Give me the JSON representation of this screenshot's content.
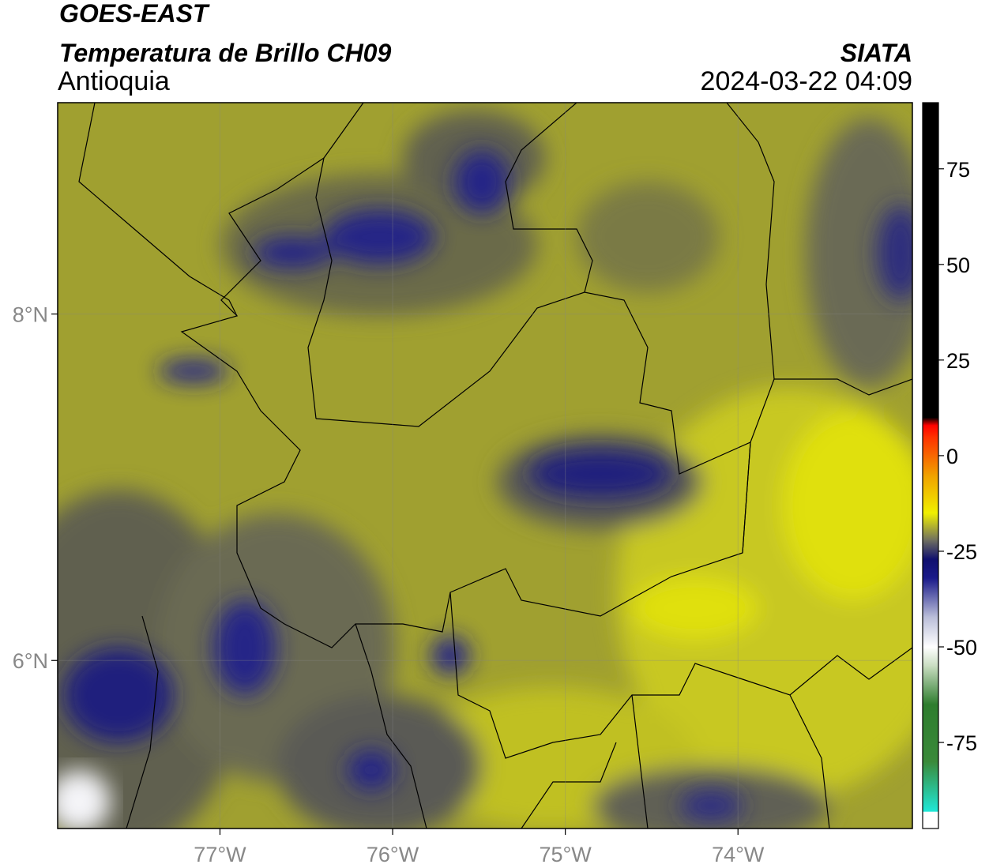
{
  "chart_data": {
    "type": "map",
    "title": "GOES-EAST",
    "subtitle": "Temperatura de Brillo CH09",
    "region": "Antioquia",
    "source": "SIATA",
    "timestamp": "2024-03-22 04:09",
    "xlim": [
      -77.94,
      -72.99
    ],
    "ylim": [
      5.03,
      9.22
    ],
    "xticks": [
      {
        "value": -77,
        "label": "77°W"
      },
      {
        "value": -76,
        "label": "76°W"
      },
      {
        "value": -75,
        "label": "75°W"
      },
      {
        "value": -74,
        "label": "74°W"
      }
    ],
    "yticks": [
      {
        "value": 8,
        "label": "8°N"
      },
      {
        "value": 6,
        "label": "6°N"
      }
    ],
    "grid": true,
    "colorbar": {
      "clim": [
        -97.5,
        92.3
      ],
      "ticks": [
        75,
        50,
        25,
        0,
        -25,
        -50,
        -75
      ],
      "stops": [
        {
          "value": -97.5,
          "color": "#ffffff"
        },
        {
          "value": -93,
          "color": "#ffffff"
        },
        {
          "value": -93,
          "color": "#20e8d8"
        },
        {
          "value": -80,
          "color": "#3a8a3a"
        },
        {
          "value": -65,
          "color": "#2e7d2e"
        },
        {
          "value": -55,
          "color": "#c8dcc0"
        },
        {
          "value": -50,
          "color": "#ffffff"
        },
        {
          "value": -42,
          "color": "#b8bcd8"
        },
        {
          "value": -32,
          "color": "#1a1a8a"
        },
        {
          "value": -27,
          "color": "#10106e"
        },
        {
          "value": -22,
          "color": "#707060"
        },
        {
          "value": -15,
          "color": "#f0f000"
        },
        {
          "value": -5,
          "color": "#f0a000"
        },
        {
          "value": 5,
          "color": "#ff3000"
        },
        {
          "value": 8,
          "color": "#ff0000"
        },
        {
          "value": 10,
          "color": "#000000"
        },
        {
          "value": 92.3,
          "color": "#000000"
        }
      ]
    }
  }
}
